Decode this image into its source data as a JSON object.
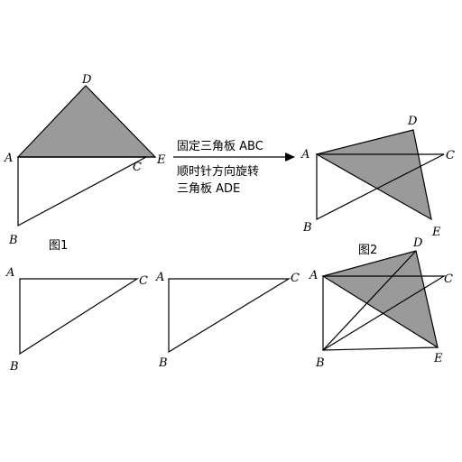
{
  "figure1": {
    "caption": "图1",
    "labels": {
      "A": "A",
      "B": "B",
      "C": "C",
      "D": "D",
      "E": "E"
    }
  },
  "transition": {
    "line1": "固定三角板 ABC",
    "line2": "顺时针方向旋转",
    "line3": "三角板 ADE"
  },
  "figure2": {
    "caption": "图2",
    "labels": {
      "A": "A",
      "B": "B",
      "C": "C",
      "D": "D",
      "E": "E"
    }
  },
  "figure3": {
    "labels": {
      "A": "A",
      "B": "B",
      "C": "C"
    }
  },
  "figure4": {
    "labels": {
      "A": "A",
      "B": "B",
      "C": "C"
    }
  },
  "figure5": {
    "labels": {
      "A": "A",
      "B": "B",
      "C": "C",
      "D": "D",
      "E": "E"
    }
  }
}
